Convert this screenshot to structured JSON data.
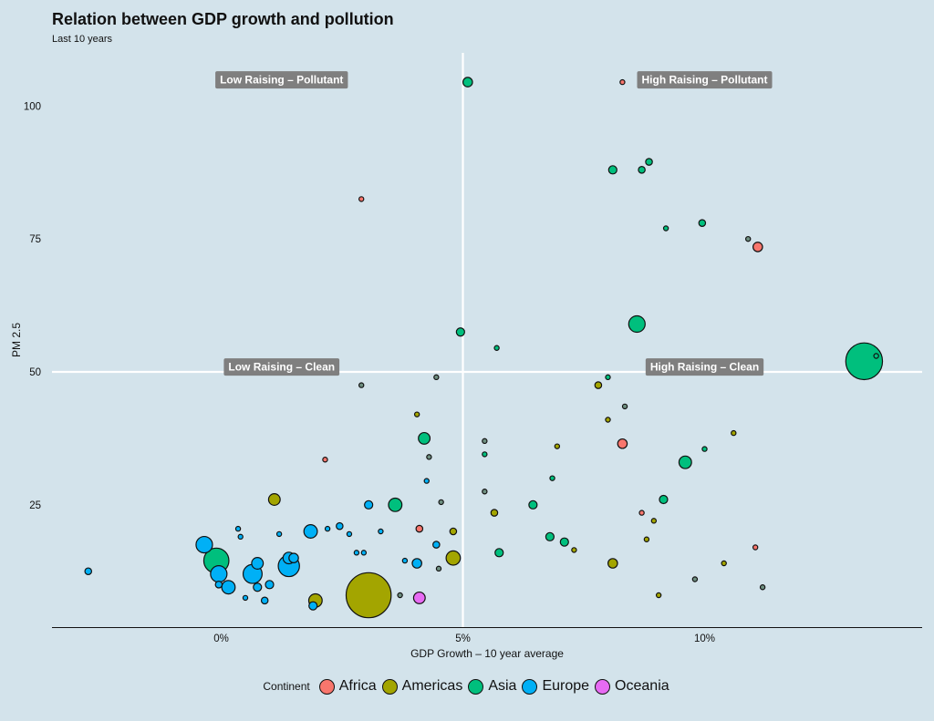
{
  "chart_data": {
    "type": "scatter",
    "title": "Relation between GDP growth and pollution",
    "subtitle": "Last 10 years",
    "xlabel": "GDP Growth – 10 year average",
    "ylabel": "PM 2.5",
    "xlim": [
      -3.5,
      14.5
    ],
    "ylim": [
      2,
      110
    ],
    "x_ticks": [
      {
        "value": 0,
        "label": "0%"
      },
      {
        "value": 5,
        "label": "5%"
      },
      {
        "value": 10,
        "label": "10%"
      }
    ],
    "y_ticks": [
      {
        "value": 25,
        "label": "25"
      },
      {
        "value": 50,
        "label": "50"
      },
      {
        "value": 75,
        "label": "75"
      },
      {
        "value": 100,
        "label": "100"
      }
    ],
    "reference_lines": {
      "x": 5,
      "y": 50
    },
    "quadrant_labels": [
      {
        "text": "Low Raising – Pollutant",
        "x": 1.25,
        "y": 105
      },
      {
        "text": "High Raising – Pollutant",
        "x": 10.0,
        "y": 105
      },
      {
        "text": "Low Raising – Clean",
        "x": 1.25,
        "y": 51
      },
      {
        "text": "High Raising – Clean",
        "x": 10.0,
        "y": 51
      }
    ],
    "legend": {
      "title": "Continent",
      "position": "bottom",
      "entries": [
        {
          "name": "Africa",
          "color": "#f8766d"
        },
        {
          "name": "Americas",
          "color": "#a3a500"
        },
        {
          "name": "Asia",
          "color": "#00bf7d"
        },
        {
          "name": "Europe",
          "color": "#00b0f6"
        },
        {
          "name": "Oceania",
          "color": "#e76bf3"
        }
      ]
    },
    "series": [
      {
        "name": "Africa",
        "points": [
          {
            "x": 8.3,
            "y": 104.5,
            "size": 1
          },
          {
            "x": 2.9,
            "y": 82.5,
            "size": 1
          },
          {
            "x": 11.1,
            "y": 73.5,
            "size": 4
          },
          {
            "x": 8.3,
            "y": 36.5,
            "size": 4
          },
          {
            "x": 2.15,
            "y": 33.5,
            "size": 1
          },
          {
            "x": 8.7,
            "y": 23.5,
            "size": 1
          },
          {
            "x": 4.1,
            "y": 20.5,
            "size": 2
          },
          {
            "x": 11.05,
            "y": 17.0,
            "size": 1
          }
        ]
      },
      {
        "name": "Americas",
        "points": [
          {
            "x": 7.8,
            "y": 47.5,
            "size": 2
          },
          {
            "x": 4.05,
            "y": 42.0,
            "size": 1
          },
          {
            "x": 8.0,
            "y": 41.0,
            "size": 1
          },
          {
            "x": 6.95,
            "y": 36.0,
            "size": 1
          },
          {
            "x": 10.6,
            "y": 38.5,
            "size": 1
          },
          {
            "x": 1.1,
            "y": 26.0,
            "size": 6
          },
          {
            "x": 5.65,
            "y": 23.5,
            "size": 2
          },
          {
            "x": 8.95,
            "y": 22.0,
            "size": 1
          },
          {
            "x": 4.8,
            "y": 20.0,
            "size": 2
          },
          {
            "x": 8.8,
            "y": 18.5,
            "size": 1
          },
          {
            "x": 7.3,
            "y": 16.5,
            "size": 1
          },
          {
            "x": 4.8,
            "y": 15.0,
            "size": 9
          },
          {
            "x": 8.1,
            "y": 14.0,
            "size": 4
          },
          {
            "x": 10.4,
            "y": 14.0,
            "size": 1
          },
          {
            "x": 1.95,
            "y": 7.0,
            "size": 8
          },
          {
            "x": 3.05,
            "y": 8.0,
            "size": 90
          },
          {
            "x": 9.05,
            "y": 8.0,
            "size": 1
          }
        ]
      },
      {
        "name": "Asia",
        "points": [
          {
            "x": 5.1,
            "y": 104.5,
            "size": 4
          },
          {
            "x": 8.1,
            "y": 88.0,
            "size": 3
          },
          {
            "x": 8.85,
            "y": 89.5,
            "size": 2
          },
          {
            "x": 8.7,
            "y": 88.0,
            "size": 2
          },
          {
            "x": 9.2,
            "y": 77.0,
            "size": 1
          },
          {
            "x": 9.95,
            "y": 78.0,
            "size": 2
          },
          {
            "x": 4.95,
            "y": 57.5,
            "size": 3
          },
          {
            "x": 8.6,
            "y": 59.0,
            "size": 12
          },
          {
            "x": 5.7,
            "y": 54.5,
            "size": 1
          },
          {
            "x": 13.3,
            "y": 52.0,
            "size": 60
          },
          {
            "x": 13.55,
            "y": 53.0,
            "size": 1
          },
          {
            "x": 8.0,
            "y": 49.0,
            "size": 1
          },
          {
            "x": 4.2,
            "y": 37.5,
            "size": 6
          },
          {
            "x": 5.45,
            "y": 34.5,
            "size": 1
          },
          {
            "x": 9.6,
            "y": 33.0,
            "size": 7
          },
          {
            "x": 10.0,
            "y": 35.5,
            "size": 1
          },
          {
            "x": 6.85,
            "y": 30.0,
            "size": 1
          },
          {
            "x": 9.15,
            "y": 26.0,
            "size": 3
          },
          {
            "x": 3.6,
            "y": 25.0,
            "size": 8
          },
          {
            "x": 6.45,
            "y": 25.0,
            "size": 3
          },
          {
            "x": 6.8,
            "y": 19.0,
            "size": 3
          },
          {
            "x": 7.1,
            "y": 18.0,
            "size": 3
          },
          {
            "x": 5.75,
            "y": 16.0,
            "size": 3
          },
          {
            "x": -0.1,
            "y": 14.5,
            "size": 28
          }
        ]
      },
      {
        "name": "Europe",
        "points": [
          {
            "x": -2.75,
            "y": 12.5,
            "size": 2
          },
          {
            "x": -0.35,
            "y": 17.5,
            "size": 12
          },
          {
            "x": 0.35,
            "y": 20.5,
            "size": 1
          },
          {
            "x": 0.4,
            "y": 19.0,
            "size": 1
          },
          {
            "x": -0.05,
            "y": 12.0,
            "size": 12
          },
          {
            "x": -0.05,
            "y": 10.0,
            "size": 2
          },
          {
            "x": 0.15,
            "y": 9.5,
            "size": 8
          },
          {
            "x": 0.5,
            "y": 7.5,
            "size": 1
          },
          {
            "x": 0.75,
            "y": 14.0,
            "size": 6
          },
          {
            "x": 0.65,
            "y": 12.0,
            "size": 16
          },
          {
            "x": 0.75,
            "y": 9.5,
            "size": 3
          },
          {
            "x": 0.9,
            "y": 7.0,
            "size": 2
          },
          {
            "x": 1.0,
            "y": 10.0,
            "size": 3
          },
          {
            "x": 1.2,
            "y": 19.5,
            "size": 1
          },
          {
            "x": 1.4,
            "y": 15.0,
            "size": 6
          },
          {
            "x": 1.5,
            "y": 15.0,
            "size": 4
          },
          {
            "x": 1.4,
            "y": 13.5,
            "size": 20
          },
          {
            "x": 1.85,
            "y": 20.0,
            "size": 8
          },
          {
            "x": 2.2,
            "y": 20.5,
            "size": 1
          },
          {
            "x": 2.45,
            "y": 21.0,
            "size": 2
          },
          {
            "x": 2.65,
            "y": 19.5,
            "size": 1
          },
          {
            "x": 2.8,
            "y": 16.0,
            "size": 1
          },
          {
            "x": 2.95,
            "y": 16.0,
            "size": 1
          },
          {
            "x": 3.05,
            "y": 25.0,
            "size": 3
          },
          {
            "x": 3.3,
            "y": 20.0,
            "size": 1
          },
          {
            "x": 3.8,
            "y": 14.5,
            "size": 1
          },
          {
            "x": 4.25,
            "y": 29.5,
            "size": 1
          },
          {
            "x": 4.45,
            "y": 17.5,
            "size": 2
          },
          {
            "x": 4.05,
            "y": 14.0,
            "size": 4
          },
          {
            "x": 1.9,
            "y": 6.0,
            "size": 3
          }
        ]
      },
      {
        "name": "Oceania",
        "points": [
          {
            "x": 4.1,
            "y": 7.5,
            "size": 6
          }
        ]
      },
      {
        "name": "",
        "points": [
          {
            "x": 2.9,
            "y": 47.5,
            "size": 1
          },
          {
            "x": 4.45,
            "y": 49.0,
            "size": 1
          },
          {
            "x": 8.35,
            "y": 43.5,
            "size": 1
          },
          {
            "x": 5.45,
            "y": 37.0,
            "size": 1
          },
          {
            "x": 4.3,
            "y": 34.0,
            "size": 1
          },
          {
            "x": 5.45,
            "y": 27.5,
            "size": 1
          },
          {
            "x": 4.55,
            "y": 25.5,
            "size": 1
          },
          {
            "x": 4.5,
            "y": 13.0,
            "size": 1
          },
          {
            "x": 3.7,
            "y": 8.0,
            "size": 1
          },
          {
            "x": 9.8,
            "y": 11.0,
            "size": 1
          },
          {
            "x": 11.2,
            "y": 9.5,
            "size": 1
          },
          {
            "x": 10.9,
            "y": 75.0,
            "size": 1
          }
        ]
      }
    ]
  }
}
